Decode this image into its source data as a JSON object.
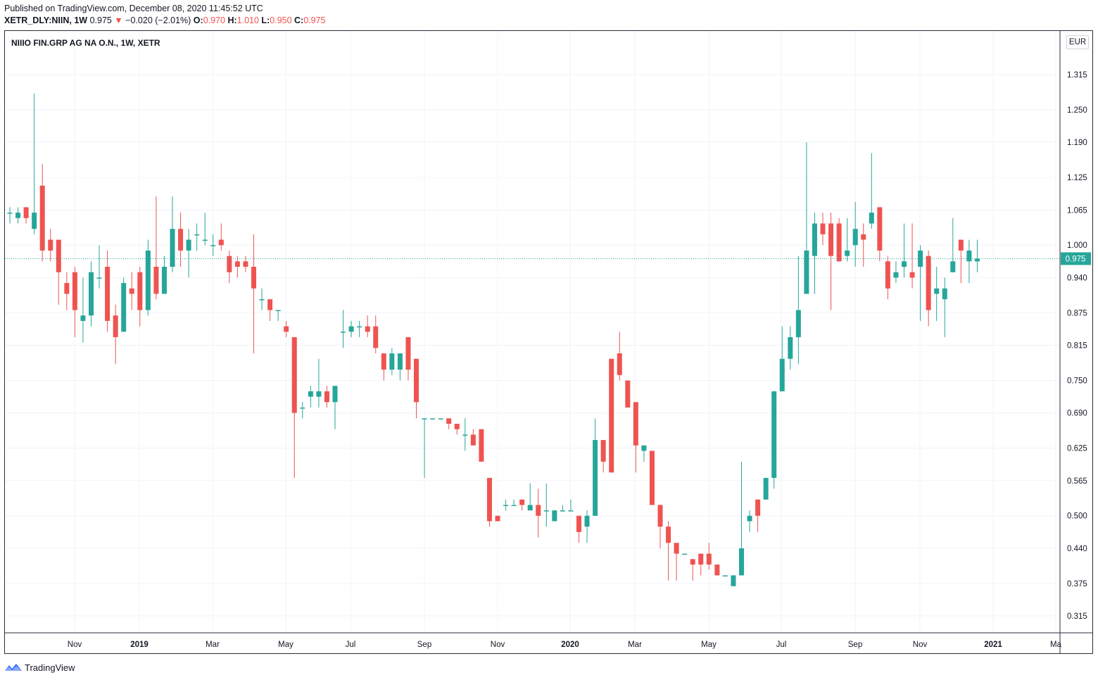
{
  "header": {
    "published": "Published on TradingView.com, December 08, 2020 11:45:52 UTC",
    "symbol": "XETR_DLY:NIIN, 1W",
    "last": "0.975",
    "down_arrow": "▼",
    "change": "−0.020 (−2.01%)",
    "o_label": "O:",
    "o_value": "0.970",
    "h_label": "H:",
    "h_value": "1.010",
    "l_label": "L:",
    "l_value": "0.950",
    "c_label": "C:",
    "c_value": "0.975"
  },
  "chart_title": "NIIIO FIN.GRP AG NA O.N., 1W, XETR",
  "currency": "EUR",
  "footer": {
    "brand": "TradingView",
    "logo_icon": "tradingview-logo-icon"
  },
  "colors": {
    "up": "#26a69a",
    "down": "#ef5350",
    "grid": "#f0f3fa",
    "last_line": "#26a69a"
  },
  "chart_data": {
    "type": "candlestick",
    "title": "NIIIO FIN.GRP AG NA O.N., 1W, XETR",
    "ylim": [
      0.28,
      1.37
    ],
    "y_ticks": [
      "1.315",
      "1.250",
      "1.190",
      "1.125",
      "1.065",
      "1.000",
      "0.940",
      "0.875",
      "0.815",
      "0.750",
      "0.690",
      "0.625",
      "0.565",
      "0.500",
      "0.440",
      "0.375",
      "0.315"
    ],
    "x_ticks": [
      "Nov",
      "2019",
      "Mar",
      "May",
      "Jul",
      "Sep",
      "Nov",
      "2020",
      "Mar",
      "May",
      "Jul",
      "Sep",
      "Nov",
      "2021",
      "Ma"
    ],
    "last_price": "0.975",
    "candles": [
      [
        1.06,
        1.06,
        1.07,
        1.04
      ],
      [
        1.05,
        1.06,
        1.07,
        1.04
      ],
      [
        1.07,
        1.05,
        1.07,
        1.04
      ],
      [
        1.03,
        1.06,
        1.28,
        1.02
      ],
      [
        1.11,
        0.99,
        1.15,
        0.97
      ],
      [
        1.01,
        0.99,
        1.03,
        0.97
      ],
      [
        1.01,
        0.95,
        1.01,
        0.89
      ],
      [
        0.93,
        0.91,
        0.95,
        0.88
      ],
      [
        0.95,
        0.88,
        0.96,
        0.83
      ],
      [
        0.86,
        0.87,
        0.94,
        0.82
      ],
      [
        0.87,
        0.95,
        0.97,
        0.85
      ],
      [
        0.94,
        0.94,
        1.0,
        0.92
      ],
      [
        0.96,
        0.86,
        0.99,
        0.84
      ],
      [
        0.87,
        0.83,
        0.89,
        0.78
      ],
      [
        0.84,
        0.93,
        0.94,
        0.84
      ],
      [
        0.92,
        0.91,
        0.95,
        0.88
      ],
      [
        0.95,
        0.88,
        0.96,
        0.85
      ],
      [
        0.88,
        0.99,
        1.01,
        0.87
      ],
      [
        0.96,
        0.91,
        1.09,
        0.9
      ],
      [
        0.91,
        0.96,
        0.98,
        0.93
      ],
      [
        0.96,
        1.03,
        1.09,
        0.95
      ],
      [
        1.03,
        0.99,
        1.06,
        0.96
      ],
      [
        0.99,
        1.01,
        1.03,
        0.94
      ],
      [
        1.02,
        1.02,
        1.04,
        0.99
      ],
      [
        1.01,
        1.01,
        1.06,
        1.0
      ],
      [
        1.0,
        1.0,
        1.02,
        0.98
      ],
      [
        1.01,
        1.0,
        1.04,
        0.99
      ],
      [
        0.98,
        0.95,
        0.99,
        0.93
      ],
      [
        0.97,
        0.96,
        0.98,
        0.94
      ],
      [
        0.97,
        0.96,
        0.98,
        0.95
      ],
      [
        0.96,
        0.92,
        1.02,
        0.8
      ],
      [
        0.9,
        0.9,
        0.92,
        0.88
      ],
      [
        0.9,
        0.88,
        0.9,
        0.86
      ],
      [
        0.88,
        0.88,
        0.88,
        0.86
      ],
      [
        0.85,
        0.84,
        0.86,
        0.83
      ],
      [
        0.83,
        0.69,
        0.83,
        0.57
      ],
      [
        0.7,
        0.7,
        0.71,
        0.68
      ],
      [
        0.72,
        0.73,
        0.74,
        0.7
      ],
      [
        0.72,
        0.73,
        0.79,
        0.7
      ],
      [
        0.73,
        0.71,
        0.74,
        0.7
      ],
      [
        0.71,
        0.74,
        0.74,
        0.66
      ],
      [
        0.84,
        0.84,
        0.88,
        0.81
      ],
      [
        0.84,
        0.85,
        0.86,
        0.83
      ],
      [
        0.85,
        0.85,
        0.86,
        0.83
      ],
      [
        0.85,
        0.84,
        0.87,
        0.83
      ],
      [
        0.85,
        0.81,
        0.87,
        0.8
      ],
      [
        0.8,
        0.77,
        0.8,
        0.75
      ],
      [
        0.77,
        0.8,
        0.81,
        0.76
      ],
      [
        0.77,
        0.8,
        0.8,
        0.75
      ],
      [
        0.83,
        0.77,
        0.83,
        0.75
      ],
      [
        0.79,
        0.71,
        0.79,
        0.68
      ],
      [
        0.68,
        0.68,
        0.68,
        0.57
      ],
      [
        0.68,
        0.68,
        0.68,
        0.68
      ],
      [
        0.68,
        0.68,
        0.68,
        0.68
      ],
      [
        0.68,
        0.67,
        0.68,
        0.66
      ],
      [
        0.67,
        0.66,
        0.67,
        0.65
      ],
      [
        0.65,
        0.65,
        0.68,
        0.62
      ],
      [
        0.65,
        0.63,
        0.66,
        0.64
      ],
      [
        0.66,
        0.6,
        0.66,
        0.6
      ],
      [
        0.57,
        0.49,
        0.57,
        0.48
      ],
      [
        0.5,
        0.49,
        0.5,
        0.49
      ],
      [
        0.52,
        0.52,
        0.53,
        0.51
      ],
      [
        0.52,
        0.52,
        0.53,
        0.52
      ],
      [
        0.53,
        0.52,
        0.53,
        0.51
      ],
      [
        0.51,
        0.52,
        0.56,
        0.51
      ],
      [
        0.52,
        0.5,
        0.55,
        0.46
      ],
      [
        0.51,
        0.51,
        0.56,
        0.48
      ],
      [
        0.49,
        0.51,
        0.51,
        0.49
      ],
      [
        0.51,
        0.51,
        0.52,
        0.51
      ],
      [
        0.51,
        0.51,
        0.53,
        0.51
      ],
      [
        0.5,
        0.47,
        0.5,
        0.45
      ],
      [
        0.48,
        0.5,
        0.51,
        0.45
      ],
      [
        0.5,
        0.64,
        0.68,
        0.5
      ],
      [
        0.64,
        0.6,
        0.64,
        0.58
      ],
      [
        0.79,
        0.58,
        0.79,
        0.58
      ],
      [
        0.8,
        0.76,
        0.84,
        0.75
      ],
      [
        0.75,
        0.7,
        0.75,
        0.7
      ],
      [
        0.71,
        0.63,
        0.71,
        0.58
      ],
      [
        0.62,
        0.63,
        0.63,
        0.6
      ],
      [
        0.62,
        0.52,
        0.62,
        0.52
      ],
      [
        0.52,
        0.48,
        0.52,
        0.44
      ],
      [
        0.48,
        0.45,
        0.49,
        0.38
      ],
      [
        0.45,
        0.43,
        0.43,
        0.38
      ],
      [
        0.43,
        0.43,
        0.43,
        0.43
      ],
      [
        0.42,
        0.41,
        0.42,
        0.38
      ],
      [
        0.43,
        0.41,
        0.43,
        0.39
      ],
      [
        0.43,
        0.41,
        0.45,
        0.4
      ],
      [
        0.41,
        0.39,
        0.41,
        0.39
      ],
      [
        0.39,
        0.39,
        0.39,
        0.39
      ],
      [
        0.37,
        0.39,
        0.39,
        0.37
      ],
      [
        0.39,
        0.44,
        0.6,
        0.39
      ],
      [
        0.49,
        0.5,
        0.51,
        0.47
      ],
      [
        0.53,
        0.5,
        0.53,
        0.47
      ],
      [
        0.53,
        0.57,
        0.57,
        0.53
      ],
      [
        0.57,
        0.73,
        0.73,
        0.55
      ],
      [
        0.73,
        0.79,
        0.85,
        0.73
      ],
      [
        0.79,
        0.83,
        0.85,
        0.77
      ],
      [
        0.83,
        0.88,
        0.98,
        0.78
      ],
      [
        0.91,
        0.99,
        1.19,
        0.91
      ],
      [
        0.98,
        1.04,
        1.06,
        0.91
      ],
      [
        1.04,
        1.02,
        1.06,
        1.0
      ],
      [
        1.04,
        0.98,
        1.06,
        0.88
      ],
      [
        1.04,
        0.97,
        1.05,
        0.97
      ],
      [
        0.98,
        0.99,
        1.05,
        0.97
      ],
      [
        1.0,
        1.03,
        1.08,
        0.96
      ],
      [
        1.02,
        1.01,
        1.04,
        0.96
      ],
      [
        1.04,
        1.06,
        1.17,
        1.03
      ],
      [
        1.07,
        0.99,
        1.07,
        0.97
      ],
      [
        0.97,
        0.92,
        0.98,
        0.9
      ],
      [
        0.94,
        0.95,
        0.97,
        0.93
      ],
      [
        0.96,
        0.97,
        1.04,
        0.94
      ],
      [
        0.95,
        0.94,
        1.04,
        0.92
      ],
      [
        0.96,
        0.99,
        1.0,
        0.86
      ],
      [
        0.98,
        0.88,
        0.99,
        0.85
      ],
      [
        0.91,
        0.92,
        0.96,
        0.86
      ],
      [
        0.9,
        0.92,
        0.94,
        0.83
      ],
      [
        0.95,
        0.97,
        1.05,
        0.95
      ],
      [
        1.01,
        0.99,
        1.01,
        0.93
      ],
      [
        0.97,
        0.99,
        1.01,
        0.93
      ],
      [
        0.97,
        0.975,
        1.01,
        0.95
      ]
    ]
  }
}
